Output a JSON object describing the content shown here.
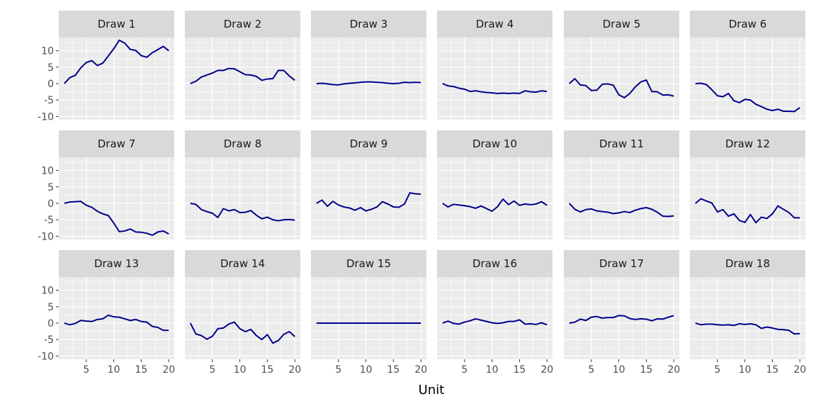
{
  "chart_data": {
    "type": "line",
    "title": "",
    "xlabel": "Unit",
    "ylabel": "",
    "xlim": [
      0,
      21
    ],
    "ylim": [
      -11,
      14
    ],
    "x_ticks": [
      5,
      10,
      15,
      20
    ],
    "y_ticks": [
      -10,
      -5,
      0,
      5,
      10
    ],
    "grid": true,
    "layout": "facet-wrap 3 rows x 6 columns",
    "colors": {
      "line": "#00008B",
      "panel_bg": "#EBEBEB",
      "grid": "#FFFFFF",
      "strip_bg": "#D9D9D9",
      "tick": "#333333"
    },
    "x": [
      1,
      2,
      3,
      4,
      5,
      6,
      7,
      8,
      9,
      10,
      11,
      12,
      13,
      14,
      15,
      16,
      17,
      18,
      19,
      20
    ],
    "panels": [
      {
        "label": "Draw 1",
        "values": [
          0,
          1.8,
          2.5,
          4.8,
          6.4,
          7.0,
          5.5,
          6.2,
          8.4,
          10.6,
          13.2,
          12.3,
          10.4,
          10.1,
          8.5,
          8.0,
          9.4,
          10.3,
          11.3,
          10.0
        ]
      },
      {
        "label": "Draw 2",
        "values": [
          0,
          0.7,
          2.0,
          2.6,
          3.2,
          4.0,
          4.0,
          4.6,
          4.5,
          3.6,
          2.7,
          2.6,
          2.2,
          1.0,
          1.4,
          1.5,
          4.0,
          4.0,
          2.3,
          1.0
        ]
      },
      {
        "label": "Draw 3",
        "values": [
          0,
          0.1,
          -0.1,
          -0.3,
          -0.4,
          -0.1,
          0.1,
          0.2,
          0.4,
          0.5,
          0.5,
          0.4,
          0.3,
          0.1,
          0.0,
          0.1,
          0.4,
          0.3,
          0.4,
          0.3
        ]
      },
      {
        "label": "Draw 4",
        "values": [
          0,
          -0.7,
          -0.9,
          -1.4,
          -1.7,
          -2.4,
          -2.2,
          -2.5,
          -2.7,
          -2.8,
          -3.0,
          -2.9,
          -3.0,
          -2.9,
          -3.0,
          -2.2,
          -2.5,
          -2.6,
          -2.2,
          -2.4
        ]
      },
      {
        "label": "Draw 5",
        "values": [
          0,
          1.5,
          -0.4,
          -0.6,
          -2.1,
          -2.0,
          -0.2,
          -0.1,
          -0.5,
          -3.4,
          -4.3,
          -3.0,
          -1.0,
          0.5,
          1.1,
          -2.4,
          -2.5,
          -3.5,
          -3.4,
          -3.8
        ]
      },
      {
        "label": "Draw 6",
        "values": [
          0,
          0.1,
          -0.3,
          -1.9,
          -3.7,
          -4.0,
          -3.0,
          -5.2,
          -5.8,
          -4.8,
          -5.0,
          -6.3,
          -7.0,
          -7.8,
          -8.2,
          -7.8,
          -8.4,
          -8.4,
          -8.5,
          -7.3
        ]
      },
      {
        "label": "Draw 7",
        "values": [
          0,
          0.4,
          0.5,
          0.6,
          -0.6,
          -1.2,
          -2.4,
          -3.2,
          -3.7,
          -6.0,
          -8.6,
          -8.4,
          -7.8,
          -8.7,
          -8.8,
          -9.1,
          -9.7,
          -8.7,
          -8.4,
          -9.3
        ]
      },
      {
        "label": "Draw 8",
        "values": [
          0,
          -0.3,
          -1.9,
          -2.5,
          -3.0,
          -4.3,
          -1.6,
          -2.3,
          -1.9,
          -2.8,
          -2.7,
          -2.2,
          -3.6,
          -4.7,
          -4.2,
          -5.0,
          -5.3,
          -5.0,
          -4.9,
          -5.1
        ]
      },
      {
        "label": "Draw 9",
        "values": [
          0,
          1.0,
          -0.9,
          0.6,
          -0.5,
          -1.1,
          -1.4,
          -2.1,
          -1.3,
          -2.3,
          -1.8,
          -1.1,
          0.5,
          -0.2,
          -1.1,
          -1.2,
          -0.2,
          3.2,
          2.9,
          2.8
        ]
      },
      {
        "label": "Draw 10",
        "values": [
          0,
          -1.1,
          -0.3,
          -0.5,
          -0.7,
          -1.0,
          -1.5,
          -0.8,
          -1.6,
          -2.4,
          -1.0,
          1.3,
          -0.4,
          0.7,
          -0.6,
          -0.2,
          -0.4,
          -0.2,
          0.5,
          -0.6
        ]
      },
      {
        "label": "Draw 11",
        "values": [
          0,
          -1.8,
          -2.6,
          -1.9,
          -1.7,
          -2.3,
          -2.5,
          -2.7,
          -3.1,
          -2.9,
          -2.5,
          -2.8,
          -2.1,
          -1.6,
          -1.3,
          -1.8,
          -2.7,
          -3.9,
          -4.0,
          -3.8
        ]
      },
      {
        "label": "Draw 12",
        "values": [
          0,
          1.4,
          0.7,
          0.1,
          -2.6,
          -1.9,
          -3.9,
          -3.2,
          -5.2,
          -5.8,
          -3.4,
          -5.9,
          -4.2,
          -4.6,
          -3.2,
          -0.8,
          -1.8,
          -2.8,
          -4.4,
          -4.4
        ]
      },
      {
        "label": "Draw 13",
        "values": [
          0,
          -0.5,
          -0.1,
          0.8,
          0.6,
          0.5,
          1.1,
          1.3,
          2.4,
          1.9,
          1.8,
          1.3,
          0.8,
          1.1,
          0.5,
          0.3,
          -1.0,
          -1.3,
          -2.2,
          -2.2
        ]
      },
      {
        "label": "Draw 14",
        "values": [
          0,
          -3.3,
          -3.8,
          -4.9,
          -4.0,
          -1.7,
          -1.5,
          -0.3,
          0.3,
          -1.7,
          -2.6,
          -1.9,
          -3.8,
          -5.0,
          -3.5,
          -6.1,
          -5.3,
          -3.4,
          -2.6,
          -4.1
        ]
      },
      {
        "label": "Draw 15",
        "values": [
          0,
          0,
          0,
          0,
          0,
          0,
          0,
          0,
          0,
          0,
          0,
          0,
          0,
          0,
          0,
          0,
          0,
          0,
          0,
          0
        ]
      },
      {
        "label": "Draw 16",
        "values": [
          0,
          0.6,
          -0.1,
          -0.3,
          0.3,
          0.7,
          1.3,
          0.9,
          0.5,
          0.1,
          -0.1,
          0.1,
          0.5,
          0.5,
          1.0,
          -0.3,
          -0.2,
          -0.4,
          0.1,
          -0.5
        ]
      },
      {
        "label": "Draw 17",
        "values": [
          0,
          0.3,
          1.2,
          0.8,
          1.8,
          2.0,
          1.5,
          1.7,
          1.7,
          2.3,
          2.2,
          1.4,
          1.1,
          1.3,
          1.2,
          0.7,
          1.3,
          1.2,
          1.8,
          2.3
        ]
      },
      {
        "label": "Draw 18",
        "values": [
          0,
          -0.5,
          -0.3,
          -0.3,
          -0.5,
          -0.6,
          -0.5,
          -0.7,
          -0.2,
          -0.4,
          -0.2,
          -0.5,
          -1.6,
          -1.2,
          -1.5,
          -1.9,
          -2.0,
          -2.2,
          -3.3,
          -3.2
        ]
      }
    ]
  }
}
